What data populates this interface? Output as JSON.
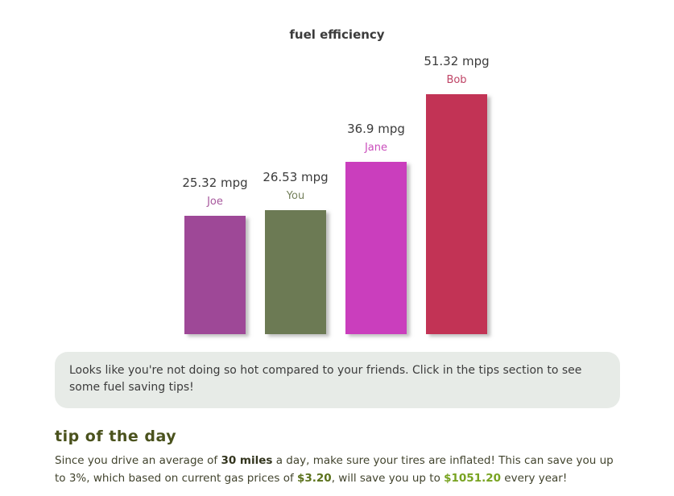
{
  "chart_data": {
    "type": "bar",
    "title": "fuel efficiency",
    "categories": [
      "Joe",
      "You",
      "Jane",
      "Bob"
    ],
    "values": [
      25.32,
      26.53,
      36.9,
      51.32
    ],
    "value_labels": [
      "25.32 mpg",
      "26.53 mpg",
      "36.9 mpg",
      "51.32 mpg"
    ],
    "unit": "mpg",
    "bar_colors": [
      "#9e4897",
      "#6c7a54",
      "#ca3ebd",
      "#c23355"
    ],
    "label_colors": [
      "#a7589d",
      "#75815c",
      "#ca4ebc",
      "#bf4466"
    ],
    "ylim": [
      0,
      52
    ],
    "xlabel": "",
    "ylabel": "",
    "grid": false,
    "legend": "none"
  },
  "message_box": {
    "text": "Looks like you're not doing so hot compared to your friends. Click in the tips section to see some fuel saving tips!"
  },
  "tip": {
    "heading": "tip of the day",
    "segments": [
      {
        "text": "Since you drive an average of ",
        "style": "normal"
      },
      {
        "text": "30 miles",
        "style": "bold"
      },
      {
        "text": " a day, make sure your tires are inflated! This can save you up to 3%, which based on current gas prices of ",
        "style": "normal"
      },
      {
        "text": "$3.20",
        "style": "green"
      },
      {
        "text": ", will save you up to ",
        "style": "normal"
      },
      {
        "text": "$1051.20",
        "style": "bright"
      },
      {
        "text": " every year!",
        "style": "normal"
      }
    ]
  }
}
